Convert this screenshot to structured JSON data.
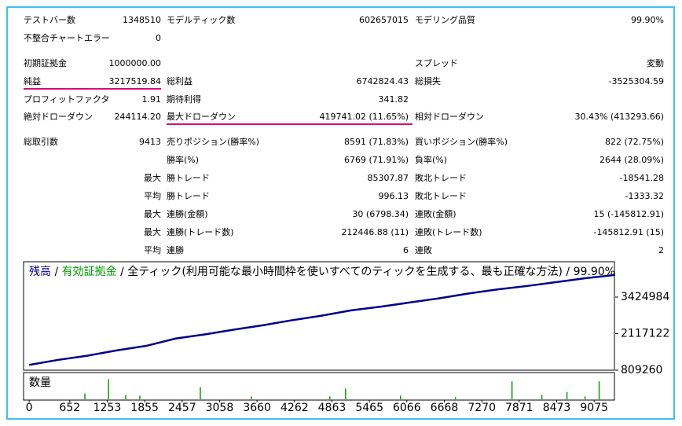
{
  "table": {
    "rows": [
      [
        "テストバー数",
        "1348510",
        "モデルティック数",
        "602657015",
        "モデリング品質",
        "99.90%"
      ],
      [
        "不整合チャートエラー",
        "0",
        null,
        null,
        null,
        null
      ],
      [
        "初期証拠金",
        "1000000.00",
        null,
        null,
        "スプレッド",
        "変動"
      ],
      [
        "純益",
        "3217519.84",
        "総利益",
        "6742824.43",
        "総損失",
        "-3525304.59"
      ],
      [
        "プロフィットファクタ",
        "1.91",
        "期待利得",
        "341.82",
        null,
        null
      ],
      [
        "絶対ドローダウン",
        "244114.20",
        "最大ドローダウン",
        "419741.02 (11.65%)",
        "相対ドローダウン",
        "30.43% (413293.66)"
      ],
      [
        "総取引数",
        "9413",
        "売りポジション(勝率%)",
        "8591 (71.83%)",
        "買いポジション(勝率%)",
        "822 (72.75%)"
      ],
      [
        null,
        null,
        "勝率(%)",
        "6769 (71.91%)",
        "負率(%)",
        "2644 (28.09%)"
      ],
      [
        null,
        "最大",
        "勝トレード",
        "85307.87",
        "敗北トレード",
        "-18541.28"
      ],
      [
        null,
        "平均",
        "勝トレード",
        "996.13",
        "敗北トレード",
        "-1333.32"
      ],
      [
        null,
        "最大",
        "連勝(金額)",
        "30 (6798.34)",
        "連敗(金額)",
        "15 (-145812.91)"
      ],
      [
        null,
        "最大",
        "連勝(トレード数)",
        "212446.88 (11)",
        "連敗(トレード数)",
        "-145812.91 (15)"
      ],
      [
        null,
        "平均",
        "連勝",
        "6",
        "連敗",
        "2"
      ]
    ]
  },
  "chart_data": {
    "type": "line",
    "title": "全ティック(利用可能な最小時間枠を使いすべてのティックを生成する、最も正確な方法)",
    "quality": "99.90%",
    "separator": "/",
    "x": [
      0,
      470,
      940,
      1410,
      1880,
      2350,
      2820,
      3290,
      3760,
      4230,
      4700,
      5170,
      5640,
      6110,
      6580,
      7050,
      7520,
      7990,
      8460,
      8930,
      9413
    ],
    "series": [
      {
        "name": "残高",
        "color": "#00008b",
        "values": [
          1000000,
          1180000,
          1330000,
          1520000,
          1680000,
          1940000,
          2090000,
          2260000,
          2420000,
          2600000,
          2760000,
          2950000,
          3080000,
          3230000,
          3380000,
          3550000,
          3700000,
          3820000,
          3960000,
          4100000,
          4217519
        ]
      },
      {
        "name": "有効証拠金",
        "color": "#00a000"
      }
    ],
    "xlim": [
      -90,
      9413
    ],
    "xticks": [
      0,
      652,
      1253,
      1855,
      2457,
      3058,
      3660,
      4262,
      4863,
      5465,
      6066,
      6668,
      7270,
      7871,
      8473,
      9075
    ],
    "ylim": [
      809260,
      4690000
    ],
    "yticks": [
      809260,
      2117122,
      3424984
    ],
    "volume": {
      "label": "数量",
      "color": "#00a000",
      "x": [
        895,
        1274,
        1551,
        1778,
        2749,
        3569,
        4830,
        5082,
        5965,
        6847,
        7755,
        8235,
        8638,
        8928,
        9155
      ],
      "values": [
        8,
        28,
        6,
        5,
        17,
        4,
        4,
        15,
        5,
        3,
        25,
        6,
        10,
        4,
        25
      ],
      "ylim": [
        0,
        35
      ]
    }
  }
}
